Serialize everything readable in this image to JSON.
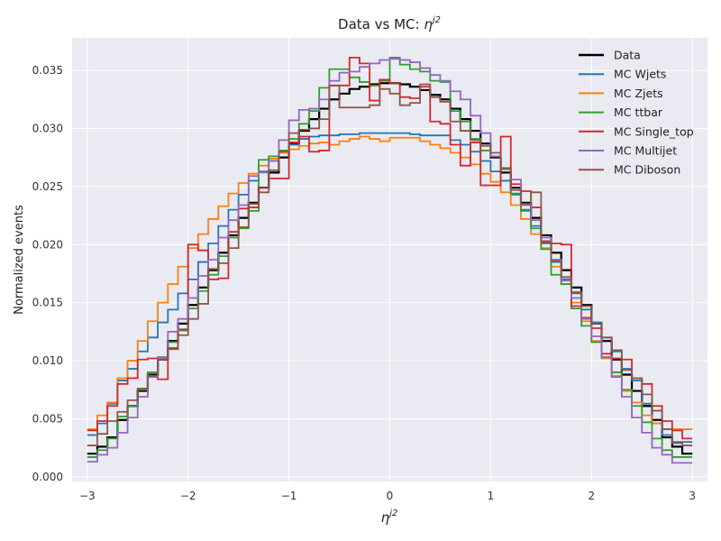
{
  "chart_data": {
    "type": "line",
    "title_prefix": "Data vs MC: ",
    "title_math": "η",
    "title_sup": "j2",
    "xlabel_math": "η",
    "xlabel_sup": "j2",
    "ylabel": "Normalized events",
    "xlim": [
      -3.15,
      3.15
    ],
    "ylim": [
      -0.0004,
      0.0378
    ],
    "grid": true,
    "legend_position": "top-right",
    "x_ticks": [
      -3,
      -2,
      -1,
      0,
      1,
      2,
      3
    ],
    "x_tick_labels": [
      "−3",
      "−2",
      "−1",
      "0",
      "1",
      "2",
      "3"
    ],
    "y_ticks": [
      0.0,
      0.005,
      0.01,
      0.015,
      0.02,
      0.025,
      0.03,
      0.035
    ],
    "y_tick_labels": [
      "0.000",
      "0.005",
      "0.010",
      "0.015",
      "0.020",
      "0.025",
      "0.030",
      "0.035"
    ],
    "bin_edges": [
      -3.0,
      -2.9,
      -2.8,
      -2.7,
      -2.6,
      -2.5,
      -2.4,
      -2.3,
      -2.2,
      -2.1,
      -2.0,
      -1.9,
      -1.8,
      -1.7,
      -1.6,
      -1.5,
      -1.4,
      -1.3,
      -1.2,
      -1.1,
      -1.0,
      -0.9,
      -0.8,
      -0.7,
      -0.6,
      -0.5,
      -0.4,
      -0.3,
      -0.2,
      -0.1,
      0.0,
      0.1,
      0.2,
      0.3,
      0.4,
      0.5,
      0.6,
      0.7,
      0.8,
      0.9,
      1.0,
      1.1,
      1.2,
      1.3,
      1.4,
      1.5,
      1.6,
      1.7,
      1.8,
      1.9,
      2.0,
      2.1,
      2.2,
      2.3,
      2.4,
      2.5,
      2.6,
      2.7,
      2.8,
      2.9,
      3.0
    ],
    "series": [
      {
        "name": "Data",
        "color": "#000000",
        "values": [
          0.002,
          0.0026,
          0.0034,
          0.0049,
          0.0061,
          0.0074,
          0.0088,
          0.0101,
          0.0117,
          0.0132,
          0.0148,
          0.0163,
          0.0178,
          0.0193,
          0.0208,
          0.0223,
          0.0236,
          0.0249,
          0.0262,
          0.0275,
          0.0287,
          0.0298,
          0.0308,
          0.0317,
          0.0325,
          0.033,
          0.0334,
          0.0336,
          0.0338,
          0.0339,
          0.0339,
          0.0338,
          0.0336,
          0.0333,
          0.0329,
          0.0325,
          0.0317,
          0.0308,
          0.0298,
          0.0287,
          0.0275,
          0.0262,
          0.0249,
          0.0236,
          0.0223,
          0.0208,
          0.0193,
          0.0178,
          0.0163,
          0.0148,
          0.0132,
          0.0117,
          0.0101,
          0.0088,
          0.0074,
          0.0061,
          0.0049,
          0.0034,
          0.0026,
          0.002
        ]
      },
      {
        "name": "MC Wjets",
        "color": "#1f77b4",
        "values": [
          0.0036,
          0.0046,
          0.0063,
          0.0083,
          0.0093,
          0.0108,
          0.012,
          0.0133,
          0.0144,
          0.0158,
          0.017,
          0.0185,
          0.0201,
          0.0216,
          0.023,
          0.0243,
          0.0255,
          0.0263,
          0.0272,
          0.028,
          0.0286,
          0.0291,
          0.0293,
          0.0294,
          0.0294,
          0.0295,
          0.0295,
          0.0296,
          0.0296,
          0.0296,
          0.0296,
          0.0296,
          0.0295,
          0.0294,
          0.0294,
          0.0294,
          0.029,
          0.0286,
          0.028,
          0.0272,
          0.0263,
          0.0255,
          0.0243,
          0.023,
          0.0216,
          0.0201,
          0.0185,
          0.017,
          0.0158,
          0.0144,
          0.0133,
          0.012,
          0.0108,
          0.0093,
          0.0083,
          0.0063,
          0.0046,
          0.0036,
          0.003,
          0.003
        ]
      },
      {
        "name": "MC Zjets",
        "color": "#ff7f0e",
        "values": [
          0.0041,
          0.0053,
          0.0064,
          0.0085,
          0.01,
          0.0117,
          0.0134,
          0.015,
          0.0166,
          0.0181,
          0.0197,
          0.0209,
          0.0222,
          0.0233,
          0.0244,
          0.0253,
          0.0261,
          0.0268,
          0.0274,
          0.0279,
          0.0282,
          0.0285,
          0.0287,
          0.0288,
          0.0286,
          0.0289,
          0.0291,
          0.0293,
          0.0291,
          0.0289,
          0.0292,
          0.0292,
          0.0292,
          0.0289,
          0.0286,
          0.0283,
          0.0279,
          0.0275,
          0.0269,
          0.0261,
          0.0254,
          0.0245,
          0.0234,
          0.0222,
          0.0209,
          0.0197,
          0.0181,
          0.0166,
          0.015,
          0.0134,
          0.0117,
          0.0102,
          0.0087,
          0.0074,
          0.0064,
          0.0053,
          0.0046,
          0.0041,
          0.0041,
          0.0041
        ]
      },
      {
        "name": "MC ttbar",
        "color": "#2ca02c",
        "values": [
          0.0017,
          0.0023,
          0.0033,
          0.0052,
          0.0061,
          0.0075,
          0.009,
          0.0103,
          0.0116,
          0.0126,
          0.0145,
          0.016,
          0.0174,
          0.019,
          0.0206,
          0.0214,
          0.0229,
          0.0273,
          0.0276,
          0.0281,
          0.0291,
          0.0304,
          0.0315,
          0.0335,
          0.0351,
          0.0351,
          0.0344,
          0.034,
          0.0337,
          0.0341,
          0.0361,
          0.0355,
          0.0351,
          0.0349,
          0.0341,
          0.034,
          0.0315,
          0.0306,
          0.0291,
          0.0281,
          0.0276,
          0.0266,
          0.0244,
          0.0229,
          0.0214,
          0.0196,
          0.0174,
          0.0166,
          0.0145,
          0.013,
          0.0116,
          0.0103,
          0.009,
          0.0075,
          0.0061,
          0.0047,
          0.0033,
          0.0023,
          0.0017,
          0.0017
        ]
      },
      {
        "name": "MC Single_top",
        "color": "#d62728",
        "values": [
          0.004,
          0.0048,
          0.0061,
          0.008,
          0.0085,
          0.0101,
          0.0102,
          0.0084,
          0.011,
          0.0127,
          0.02,
          0.0195,
          0.017,
          0.0171,
          0.0211,
          0.0231,
          0.0232,
          0.0249,
          0.0257,
          0.0257,
          0.0288,
          0.0293,
          0.028,
          0.0281,
          0.0337,
          0.0337,
          0.0361,
          0.0356,
          0.0324,
          0.0342,
          0.0339,
          0.0327,
          0.0326,
          0.0336,
          0.0306,
          0.0304,
          0.0286,
          0.0268,
          0.0288,
          0.0251,
          0.0251,
          0.0293,
          0.0252,
          0.0246,
          0.0232,
          0.0203,
          0.0201,
          0.02,
          0.0147,
          0.0137,
          0.0128,
          0.0106,
          0.0102,
          0.0101,
          0.0085,
          0.008,
          0.0061,
          0.0048,
          0.004,
          0.0033
        ]
      },
      {
        "name": "MC Multijet",
        "color": "#9467bd",
        "values": [
          0.0013,
          0.0019,
          0.0025,
          0.0038,
          0.0051,
          0.0069,
          0.0086,
          0.0103,
          0.0125,
          0.0136,
          0.0154,
          0.0173,
          0.0187,
          0.0206,
          0.0221,
          0.0234,
          0.0259,
          0.0262,
          0.0272,
          0.029,
          0.0307,
          0.0316,
          0.0317,
          0.0325,
          0.0341,
          0.0348,
          0.0349,
          0.0353,
          0.0356,
          0.0359,
          0.036,
          0.0359,
          0.0357,
          0.0352,
          0.0346,
          0.0341,
          0.0332,
          0.0325,
          0.0311,
          0.0296,
          0.0276,
          0.0265,
          0.0256,
          0.0234,
          0.0221,
          0.0206,
          0.0187,
          0.0169,
          0.0154,
          0.0136,
          0.0121,
          0.0103,
          0.0086,
          0.0069,
          0.0051,
          0.0038,
          0.0025,
          0.0019,
          0.0012,
          0.0012
        ]
      },
      {
        "name": "MC Diboson",
        "color": "#8c564b",
        "values": [
          0.0027,
          0.0037,
          0.0048,
          0.0056,
          0.0066,
          0.0076,
          0.0087,
          0.0101,
          0.0111,
          0.0122,
          0.0136,
          0.0149,
          0.0179,
          0.0184,
          0.0197,
          0.0215,
          0.0235,
          0.0245,
          0.0264,
          0.028,
          0.0296,
          0.0299,
          0.03,
          0.0308,
          0.0337,
          0.0318,
          0.0318,
          0.0318,
          0.032,
          0.0334,
          0.033,
          0.032,
          0.0322,
          0.0338,
          0.0327,
          0.0323,
          0.0306,
          0.0298,
          0.029,
          0.0285,
          0.0279,
          0.0265,
          0.0247,
          0.0235,
          0.0245,
          0.0202,
          0.0186,
          0.0172,
          0.0159,
          0.0147,
          0.0132,
          0.012,
          0.0109,
          0.0092,
          0.0085,
          0.0071,
          0.0057,
          0.0041,
          0.0029,
          0.0027
        ]
      }
    ]
  }
}
